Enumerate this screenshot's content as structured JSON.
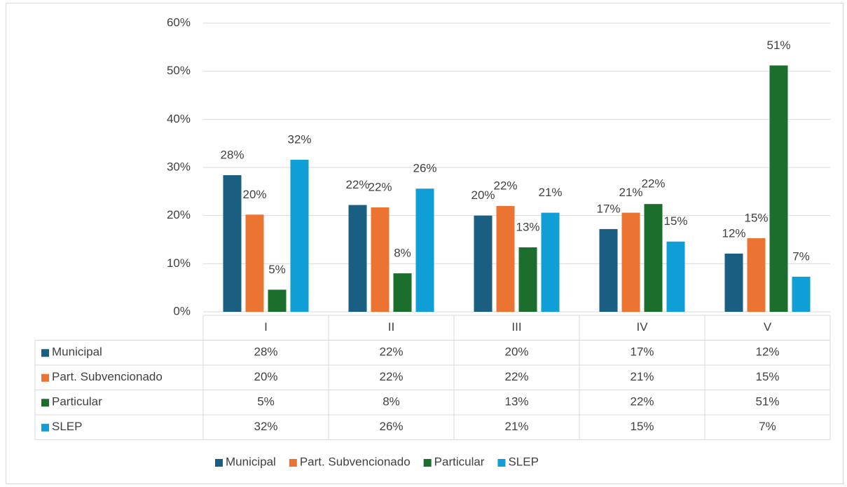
{
  "chart_data": {
    "type": "bar",
    "categories": [
      "I",
      "II",
      "III",
      "IV",
      "V"
    ],
    "series": [
      {
        "name": "Municipal",
        "color": "#1a5f82",
        "values": [
          28.4,
          22.2,
          20,
          17.2,
          12.1
        ],
        "value_labels": [
          "28%",
          "22%",
          "20%",
          "17%",
          "12%"
        ]
      },
      {
        "name": "Part. Subvencionado",
        "color": "#ec7432",
        "values": [
          20.2,
          21.7,
          22,
          20.6,
          15.3
        ],
        "value_labels": [
          "20%",
          "22%",
          "22%",
          "21%",
          "15%"
        ]
      },
      {
        "name": "Particular",
        "color": "#1b6e2b",
        "values": [
          4.6,
          8,
          13.4,
          22.4,
          51.2
        ],
        "value_labels": [
          "5%",
          "8%",
          "13%",
          "22%",
          "51%"
        ]
      },
      {
        "name": "SLEP",
        "color": "#0f9ed5",
        "values": [
          31.6,
          25.6,
          20.6,
          14.6,
          7.3
        ],
        "value_labels": [
          "32%",
          "26%",
          "21%",
          "15%",
          "7%"
        ]
      }
    ],
    "ylim": [
      0,
      60
    ],
    "yticks": [
      {
        "value": 0,
        "label": "0%"
      },
      {
        "value": 10,
        "label": "10%"
      },
      {
        "value": 20,
        "label": "20%"
      },
      {
        "value": 30,
        "label": "30%"
      },
      {
        "value": 40,
        "label": "40%"
      },
      {
        "value": 50,
        "label": "50%"
      },
      {
        "value": 60,
        "label": "60%"
      }
    ],
    "grid": true,
    "legend": "bottom",
    "data_table": true
  }
}
